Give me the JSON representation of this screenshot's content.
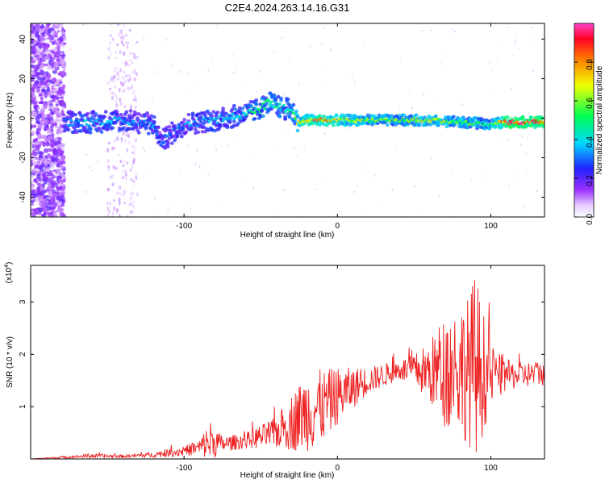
{
  "title": "C2E4.2024.263.14.16.G31",
  "chart_data": [
    {
      "type": "heatmap",
      "xlabel": "Height of straight line (km)",
      "ylabel": "Frequency (Hz)",
      "xlim": [
        -200,
        135
      ],
      "ylim": [
        -50,
        48
      ],
      "x_ticks": [
        -100,
        0,
        100
      ],
      "y_ticks": [
        -40,
        -20,
        0,
        20,
        40
      ],
      "colorbar": {
        "label": "Normalized spectral amplitude",
        "range": [
          0.0,
          1.0
        ],
        "ticks": [
          "0.0",
          "0.2",
          "0.4",
          "0.6",
          "0.8"
        ],
        "tick_values": [
          0.0,
          0.2,
          0.4,
          0.6,
          0.8
        ]
      },
      "ridge": {
        "name": "",
        "x": [
          -175,
          -160,
          -140,
          -120,
          -115,
          -100,
          -80,
          -60,
          -50,
          -45,
          -40,
          -30,
          -25,
          -20,
          -10,
          0,
          20,
          40,
          60,
          80,
          100,
          110,
          135
        ],
        "freq": [
          -2,
          -2,
          -1,
          -3,
          -12,
          -3,
          -1,
          2,
          5,
          8,
          6,
          4,
          -2,
          -1,
          -1,
          -1,
          -1,
          -1,
          -1,
          -2,
          -3,
          -2,
          -2
        ],
        "amp": [
          0.35,
          0.4,
          0.35,
          0.35,
          0.3,
          0.35,
          0.4,
          0.45,
          0.5,
          0.55,
          0.5,
          0.5,
          0.7,
          0.75,
          0.85,
          0.7,
          0.6,
          0.6,
          0.65,
          0.6,
          0.55,
          0.95,
          0.95
        ]
      }
    },
    {
      "type": "line",
      "xlabel": "Height of straight line (km)",
      "ylabel": "SNR (10 * v/v)",
      "y_multiplier": "(x10⁴)",
      "xlim": [
        -200,
        135
      ],
      "ylim": [
        0,
        3.7
      ],
      "x_ticks": [
        -100,
        0,
        100
      ],
      "y_ticks": [
        1,
        2,
        3
      ],
      "color": "#ee2222",
      "envelope": {
        "x": [
          -200,
          -180,
          -160,
          -140,
          -120,
          -100,
          -90,
          -83,
          -75,
          -60,
          -40,
          -30,
          -20,
          -15,
          -10,
          0,
          20,
          40,
          50,
          60,
          70,
          80,
          85,
          90,
          95,
          100,
          110,
          120,
          135
        ],
        "mean": [
          0.0,
          0.03,
          0.06,
          0.05,
          0.08,
          0.15,
          0.22,
          0.35,
          0.28,
          0.35,
          0.5,
          0.7,
          0.9,
          0.95,
          1.0,
          1.2,
          1.5,
          1.7,
          1.7,
          1.65,
          1.7,
          1.75,
          1.7,
          1.8,
          1.65,
          1.6,
          1.6,
          1.6,
          1.65
        ],
        "amp": [
          0.0,
          0.02,
          0.04,
          0.03,
          0.05,
          0.1,
          0.15,
          0.4,
          0.15,
          0.15,
          0.3,
          0.55,
          0.75,
          0.8,
          0.7,
          0.55,
          0.25,
          0.2,
          0.3,
          0.6,
          1.1,
          1.3,
          1.4,
          1.8,
          1.2,
          0.6,
          0.3,
          0.25,
          0.25
        ]
      }
    }
  ]
}
